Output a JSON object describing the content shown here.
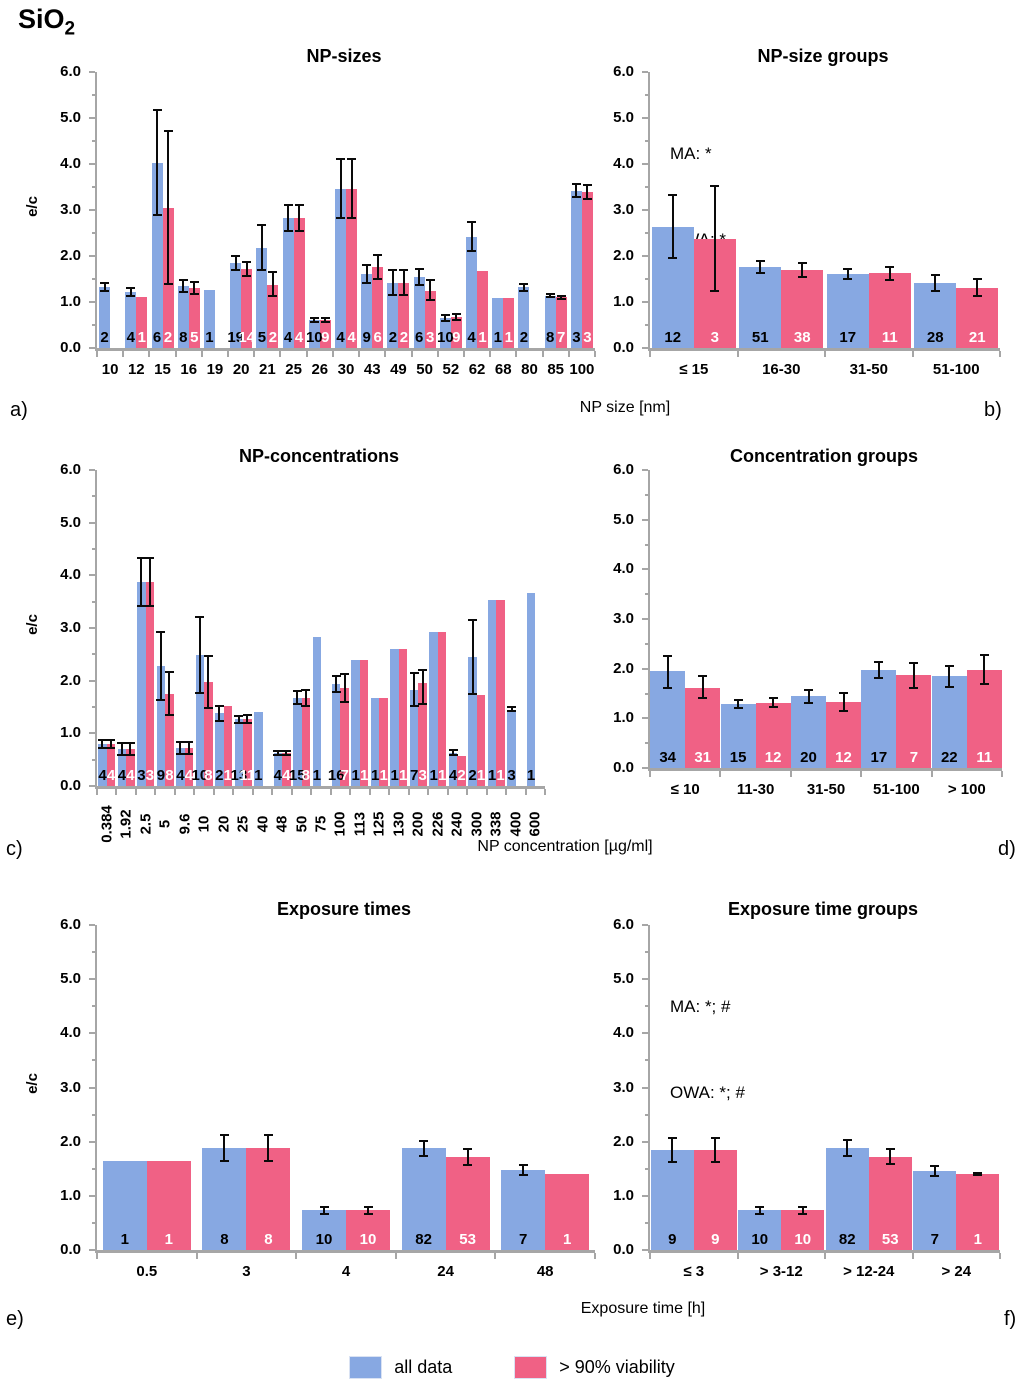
{
  "figure_title": {
    "prefix": "SiO",
    "subscript": "2"
  },
  "panel_letters": [
    "a)",
    "b)",
    "c)",
    "d)",
    "e)",
    "f)"
  ],
  "legend": {
    "position": "bottom-center",
    "items": [
      {
        "label": "all data",
        "color": "#87A8E2"
      },
      {
        "label": "> 90% viability",
        "color": "#F06185"
      }
    ]
  },
  "chart_data": [
    {
      "type": "bar",
      "title": "NP-sizes",
      "xlabel": "NP size [nm]",
      "ylabel": "e/c",
      "ylim": [
        0,
        6
      ],
      "yticks": [
        "6.0",
        "5.0",
        "4.0",
        "3.0",
        "2.0",
        "1.0",
        "0.0"
      ],
      "grid": false,
      "annotation_lines": [],
      "categories": [
        "10",
        "12",
        "15",
        "16",
        "19",
        "20",
        "21",
        "25",
        "26",
        "30",
        "43",
        "49",
        "50",
        "52",
        "62",
        "68",
        "80",
        "85",
        "100"
      ],
      "series": [
        {
          "name": "all data",
          "color": "#87A8E2",
          "count_color": "#000000",
          "values": [
            1.33,
            1.22,
            4.03,
            1.35,
            1.27,
            1.85,
            2.18,
            2.83,
            0.61,
            3.45,
            1.6,
            1.42,
            1.55,
            0.65,
            2.42,
            1.08,
            1.32,
            1.14,
            3.42
          ],
          "err_lo": [
            1.25,
            1.14,
            2.9,
            1.22,
            null,
            1.7,
            1.7,
            2.55,
            0.56,
            2.82,
            1.42,
            1.15,
            1.37,
            0.58,
            2.1,
            null,
            1.25,
            1.1,
            3.28
          ],
          "err_hi": [
            1.42,
            1.3,
            5.18,
            1.48,
            null,
            2.0,
            2.68,
            3.1,
            0.66,
            4.1,
            1.8,
            1.7,
            1.72,
            0.72,
            2.75,
            null,
            1.4,
            1.18,
            3.56
          ],
          "counts": [
            2,
            4,
            6,
            8,
            1,
            19,
            5,
            4,
            10,
            4,
            9,
            2,
            6,
            10,
            4,
            1,
            2,
            8,
            3
          ]
        },
        {
          "name": "> 90% viability",
          "color": "#F06185",
          "count_color": "#ffffff",
          "values": [
            null,
            1.1,
            3.05,
            1.3,
            null,
            1.72,
            1.38,
            2.83,
            0.61,
            3.45,
            1.76,
            1.42,
            1.25,
            0.67,
            1.68,
            1.08,
            null,
            1.1,
            3.4
          ],
          "err_lo": [
            null,
            null,
            1.4,
            1.17,
            null,
            1.57,
            1.12,
            2.55,
            0.56,
            2.82,
            1.5,
            1.15,
            1.05,
            0.6,
            null,
            null,
            null,
            1.06,
            3.25
          ],
          "err_hi": [
            null,
            null,
            4.72,
            1.43,
            null,
            1.87,
            1.65,
            3.1,
            0.66,
            4.1,
            2.02,
            1.7,
            1.47,
            0.74,
            null,
            null,
            null,
            1.14,
            3.55
          ],
          "counts": [
            null,
            1,
            2,
            5,
            null,
            14,
            2,
            4,
            9,
            4,
            6,
            2,
            3,
            9,
            1,
            1,
            null,
            7,
            3
          ]
        }
      ]
    },
    {
      "type": "bar",
      "title": "NP-size groups",
      "xlabel": "",
      "ylabel": "e/c",
      "ylim": [
        0,
        6
      ],
      "yticks": [
        "6.0",
        "5.0",
        "4.0",
        "3.0",
        "2.0",
        "1.0",
        "0.0"
      ],
      "grid": false,
      "annotation_lines": [
        "MA: *",
        "OWA: *"
      ],
      "categories": [
        "≤ 15",
        "16-30",
        "31-50",
        "51-100"
      ],
      "series": [
        {
          "name": "all data",
          "color": "#87A8E2",
          "count_color": "#000000",
          "values": [
            2.63,
            1.77,
            1.6,
            1.42
          ],
          "err_lo": [
            1.95,
            1.63,
            1.5,
            1.24
          ],
          "err_hi": [
            3.33,
            1.9,
            1.71,
            1.59
          ],
          "counts": [
            12,
            51,
            17,
            28
          ]
        },
        {
          "name": "> 90% viability",
          "color": "#F06185",
          "count_color": "#ffffff",
          "values": [
            2.38,
            1.7,
            1.62,
            1.3
          ],
          "err_lo": [
            1.25,
            1.55,
            1.47,
            1.13
          ],
          "err_hi": [
            3.53,
            1.85,
            1.77,
            1.49
          ],
          "counts": [
            3,
            38,
            11,
            21
          ]
        }
      ]
    },
    {
      "type": "bar",
      "title": "NP-concentrations",
      "xlabel": "NP concentration [µg/ml]",
      "ylabel": "e/c",
      "ylim": [
        0,
        6
      ],
      "yticks": [
        "6.0",
        "5.0",
        "4.0",
        "3.0",
        "2.0",
        "1.0",
        "0.0"
      ],
      "grid": false,
      "annotation_lines": [],
      "categories": [
        "0.384",
        "1.92",
        "2.5",
        "5",
        "9.6",
        "10",
        "20",
        "25",
        "40",
        "48",
        "50",
        "75",
        "100",
        "113",
        "125",
        "130",
        "200",
        "226",
        "240",
        "300",
        "338",
        "400",
        "600"
      ],
      "series": [
        {
          "name": "all data",
          "color": "#87A8E2",
          "count_color": "#000000",
          "values": [
            0.8,
            0.7,
            3.88,
            2.28,
            0.72,
            2.48,
            1.38,
            1.27,
            1.4,
            0.62,
            1.67,
            2.82,
            1.93,
            2.4,
            1.67,
            2.6,
            1.83,
            2.92,
            0.63,
            2.45,
            3.53,
            1.45,
            3.67
          ],
          "err_lo": [
            0.72,
            0.58,
            3.42,
            1.64,
            0.6,
            1.77,
            1.23,
            1.2,
            null,
            0.58,
            1.55,
            null,
            1.78,
            null,
            null,
            null,
            1.52,
            null,
            0.58,
            1.75,
            null,
            1.42,
            null
          ],
          "err_hi": [
            0.88,
            0.82,
            4.32,
            2.92,
            0.84,
            3.2,
            1.52,
            1.33,
            null,
            0.66,
            1.8,
            null,
            2.08,
            null,
            null,
            null,
            2.15,
            null,
            0.68,
            3.15,
            null,
            1.5,
            null
          ],
          "counts": [
            4,
            4,
            3,
            9,
            4,
            10,
            2,
            13,
            1,
            4,
            15,
            1,
            16,
            1,
            1,
            1,
            7,
            1,
            4,
            2,
            1,
            3,
            1
          ]
        },
        {
          "name": "> 90% viability",
          "color": "#F06185",
          "count_color": "#ffffff",
          "values": [
            0.8,
            0.7,
            3.88,
            1.75,
            0.72,
            1.97,
            1.52,
            1.28,
            null,
            0.62,
            1.67,
            null,
            1.87,
            2.4,
            1.67,
            2.6,
            1.95,
            2.92,
            0.57,
            1.72,
            3.53,
            null,
            null
          ],
          "err_lo": [
            0.73,
            0.58,
            3.42,
            1.34,
            0.6,
            1.49,
            null,
            1.2,
            null,
            0.58,
            1.52,
            null,
            1.6,
            null,
            null,
            null,
            1.55,
            null,
            null,
            null,
            null,
            null,
            null
          ],
          "err_hi": [
            0.87,
            0.82,
            4.32,
            2.16,
            0.84,
            2.46,
            null,
            1.35,
            null,
            0.66,
            1.82,
            null,
            2.13,
            null,
            null,
            null,
            2.2,
            null,
            null,
            null,
            null,
            null,
            null
          ],
          "counts": [
            4,
            4,
            3,
            8,
            4,
            8,
            1,
            11,
            null,
            4,
            8,
            null,
            7,
            1,
            1,
            1,
            3,
            1,
            2,
            1,
            1,
            null,
            null
          ]
        }
      ]
    },
    {
      "type": "bar",
      "title": "Concentration groups",
      "xlabel": "",
      "ylabel": "e/c",
      "ylim": [
        0,
        6
      ],
      "yticks": [
        "6.0",
        "5.0",
        "4.0",
        "3.0",
        "2.0",
        "1.0",
        "0.0"
      ],
      "grid": false,
      "annotation_lines": [],
      "categories": [
        "≤ 10",
        "11-30",
        "31-50",
        "51-100",
        "> 100"
      ],
      "series": [
        {
          "name": "all data",
          "color": "#87A8E2",
          "count_color": "#000000",
          "values": [
            1.95,
            1.28,
            1.45,
            1.97,
            1.85
          ],
          "err_lo": [
            1.62,
            1.21,
            1.31,
            1.82,
            1.63
          ],
          "err_hi": [
            2.26,
            1.36,
            1.58,
            2.13,
            2.06
          ],
          "counts": [
            34,
            15,
            20,
            17,
            22
          ]
        },
        {
          "name": "> 90% viability",
          "color": "#F06185",
          "count_color": "#ffffff",
          "values": [
            1.62,
            1.31,
            1.32,
            1.87,
            1.98
          ],
          "err_lo": [
            1.4,
            1.23,
            1.14,
            1.61,
            1.7
          ],
          "err_hi": [
            1.85,
            1.4,
            1.51,
            2.12,
            2.27
          ],
          "counts": [
            31,
            12,
            12,
            7,
            11
          ]
        }
      ]
    },
    {
      "type": "bar",
      "title": "Exposure times",
      "xlabel": "Exposure time [h]",
      "ylabel": "e/c",
      "ylim": [
        0,
        6
      ],
      "yticks": [
        "6.0",
        "5.0",
        "4.0",
        "3.0",
        "2.0",
        "1.0",
        "0.0"
      ],
      "grid": false,
      "annotation_lines": [],
      "categories": [
        "0.5",
        "3",
        "4",
        "24",
        "48"
      ],
      "series": [
        {
          "name": "all data",
          "color": "#87A8E2",
          "count_color": "#000000",
          "values": [
            1.65,
            1.88,
            0.73,
            1.88,
            1.47
          ],
          "err_lo": [
            null,
            1.65,
            0.67,
            1.74,
            1.38
          ],
          "err_hi": [
            null,
            2.12,
            0.8,
            2.02,
            1.57
          ],
          "counts": [
            1,
            8,
            10,
            82,
            7
          ]
        },
        {
          "name": "> 90% viability",
          "color": "#F06185",
          "count_color": "#ffffff",
          "values": [
            1.65,
            1.88,
            0.73,
            1.72,
            1.41
          ],
          "err_lo": [
            null,
            1.65,
            0.67,
            1.57,
            null
          ],
          "err_hi": [
            null,
            2.12,
            0.8,
            1.87,
            null
          ],
          "counts": [
            1,
            8,
            10,
            53,
            1
          ]
        }
      ]
    },
    {
      "type": "bar",
      "title": "Exposure time groups",
      "xlabel": "",
      "ylabel": "e/c",
      "ylim": [
        0,
        6
      ],
      "yticks": [
        "6.0",
        "5.0",
        "4.0",
        "3.0",
        "2.0",
        "1.0",
        "0.0"
      ],
      "grid": false,
      "annotation_lines": [
        "MA: *; #",
        "OWA: *; #"
      ],
      "categories": [
        "≤ 3",
        "> 3-12",
        "> 12-24",
        "> 24"
      ],
      "series": [
        {
          "name": "all data",
          "color": "#87A8E2",
          "count_color": "#000000",
          "values": [
            1.85,
            0.73,
            1.88,
            1.45
          ],
          "err_lo": [
            1.63,
            0.67,
            1.73,
            1.36
          ],
          "err_hi": [
            2.07,
            0.79,
            2.03,
            1.55
          ],
          "counts": [
            9,
            10,
            82,
            7
          ]
        },
        {
          "name": "> 90% viability",
          "color": "#F06185",
          "count_color": "#ffffff",
          "values": [
            1.85,
            0.73,
            1.72,
            1.4
          ],
          "err_lo": [
            1.63,
            0.67,
            1.58,
            1.38
          ],
          "err_hi": [
            2.07,
            0.79,
            1.87,
            1.42
          ],
          "counts": [
            9,
            10,
            53,
            1
          ]
        }
      ]
    }
  ]
}
